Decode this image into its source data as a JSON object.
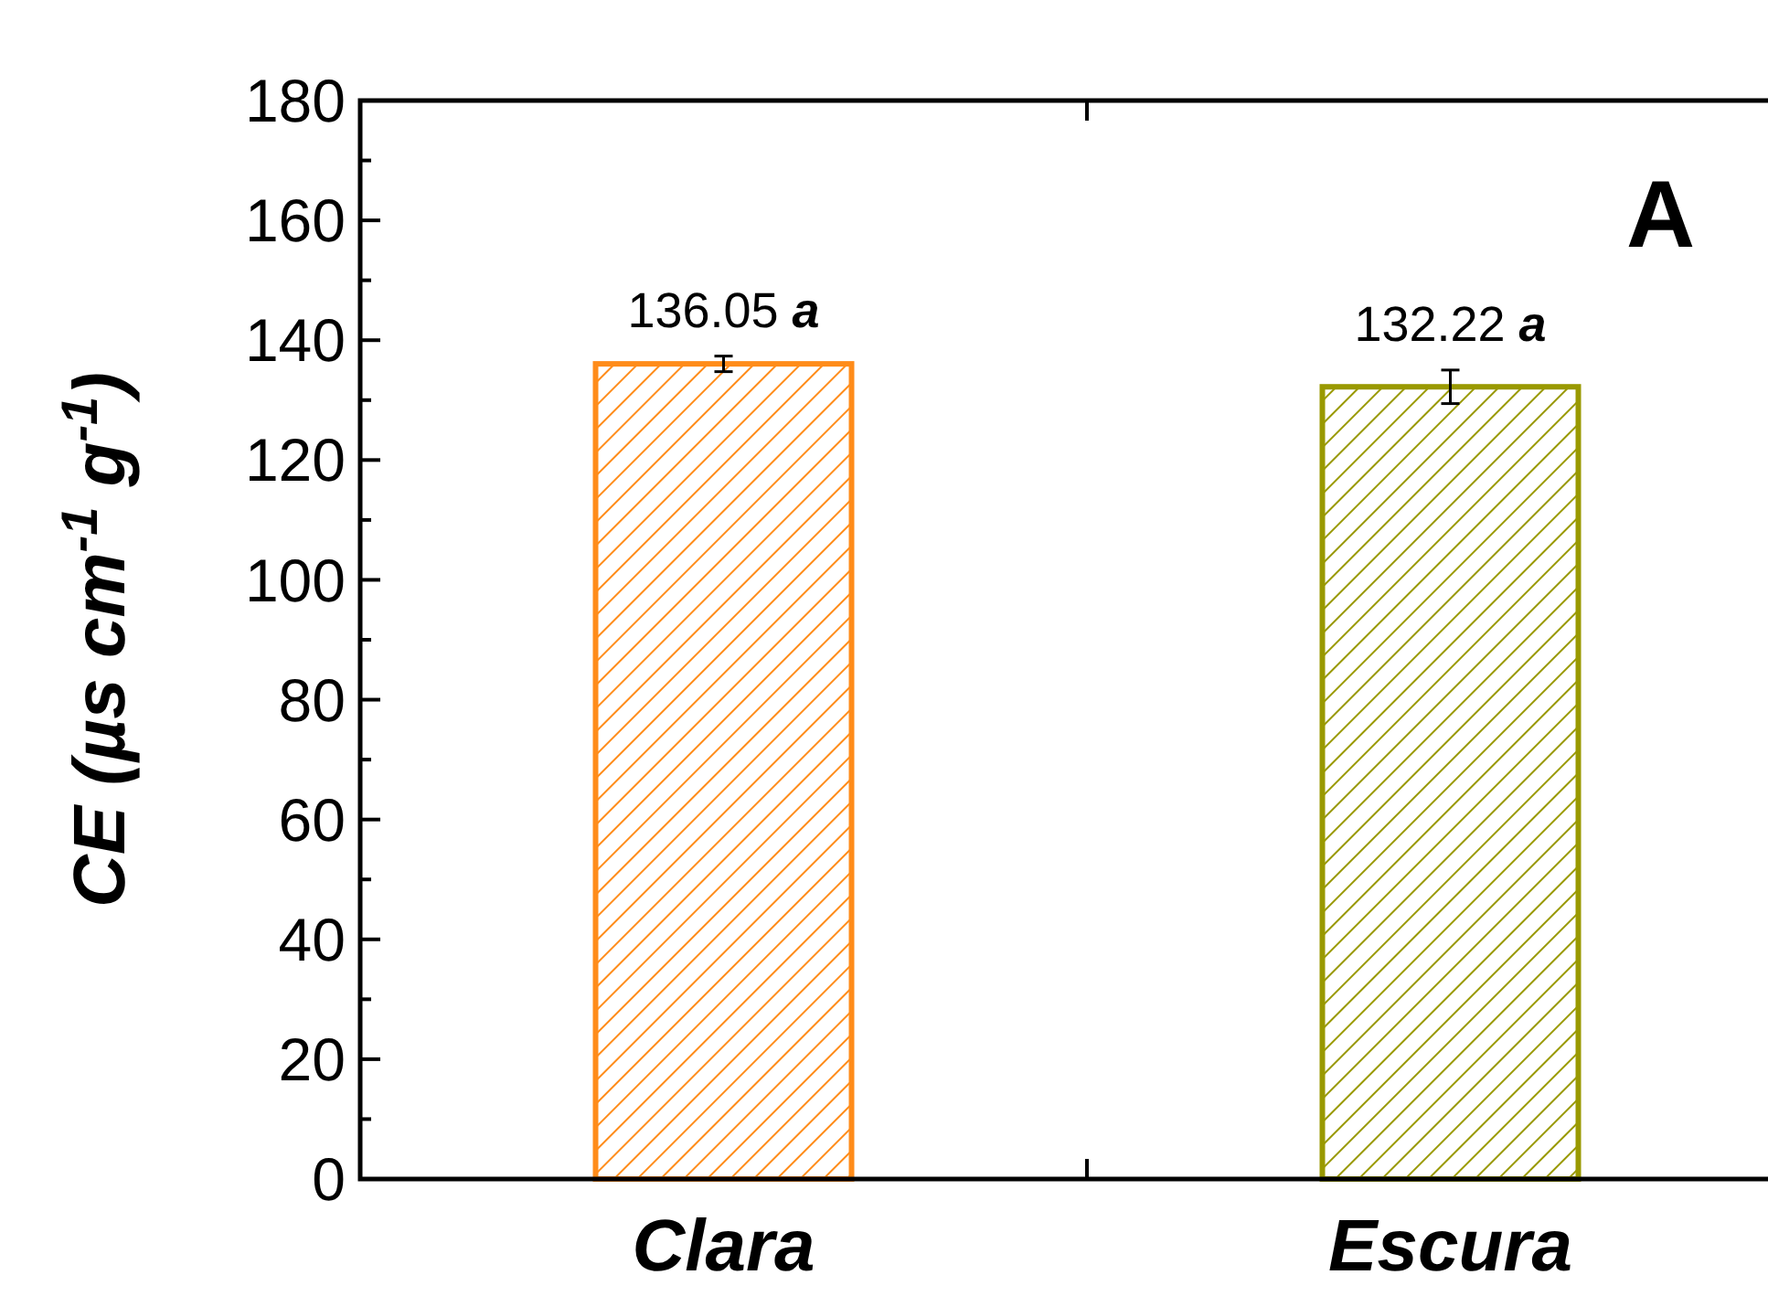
{
  "chart_data": {
    "type": "bar",
    "ylabel": "CE (µs cm$^{-1}$ g$^{-1}$)",
    "annotations": [
      "A"
    ],
    "categories": [
      "Clara",
      "Escura"
    ],
    "values": [
      136.05,
      132.22
    ],
    "colors": [
      "#ff8c1a",
      "#999900"
    ],
    "errors": [
      1.3,
      2.8
    ],
    "value_labels": [
      "136.05 a",
      "132.22 a"
    ],
    "ylim": [
      0,
      180
    ],
    "yticks": [
      0,
      {
        "value": 10,
        "label": null
      },
      20,
      {
        "value": 30,
        "label": null
      },
      40,
      {
        "value": 50,
        "label": null
      },
      60,
      {
        "value": 70,
        "label": null
      },
      80,
      {
        "value": 90,
        "label": null
      },
      100,
      {
        "value": 110,
        "label": null
      },
      120,
      {
        "value": 130,
        "label": null
      },
      140,
      {
        "value": 150,
        "label": null
      },
      160,
      {
        "value": 170,
        "label": null
      },
      180
    ],
    "grid": false
  }
}
